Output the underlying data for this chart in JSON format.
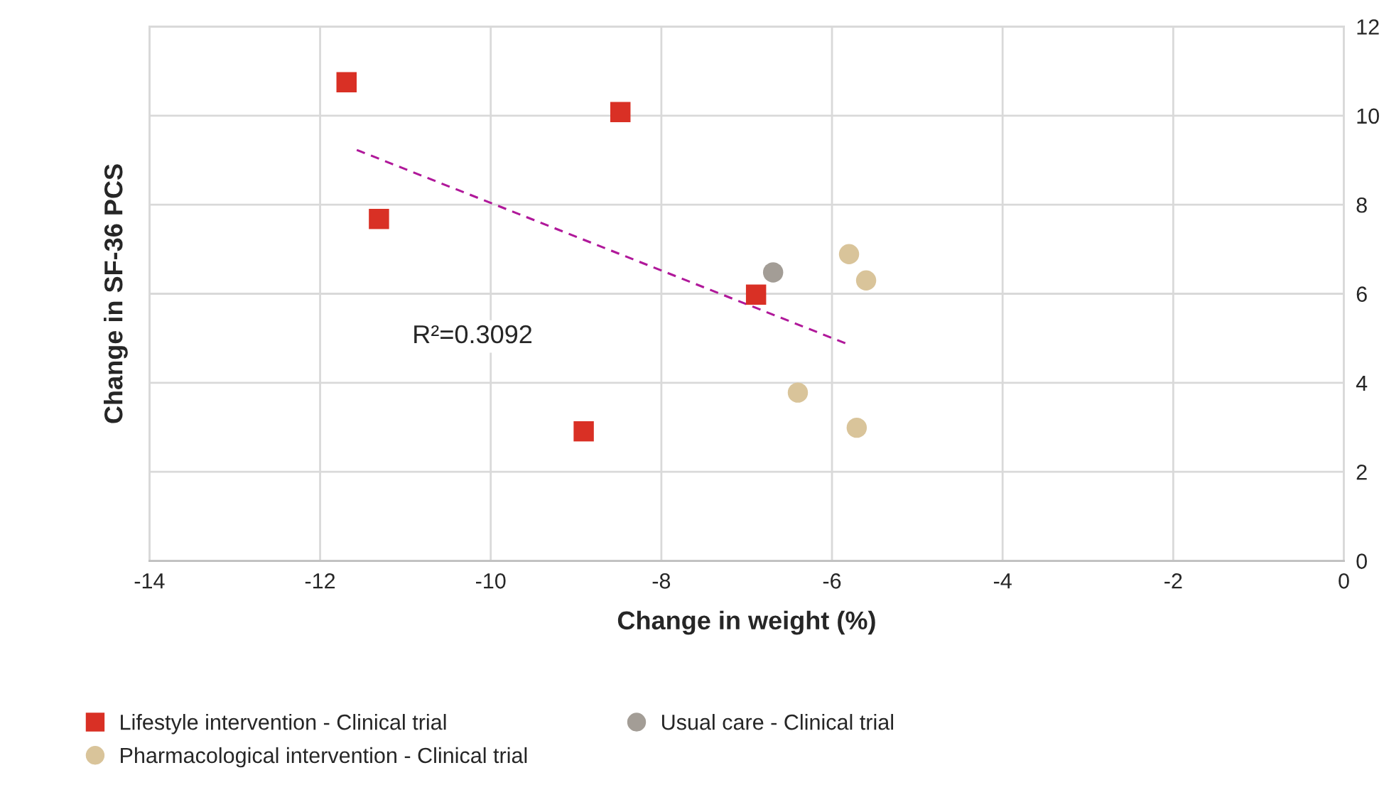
{
  "chart_data": {
    "type": "scatter",
    "xlabel": "Change in weight (%)",
    "ylabel": "Change in SF-36 PCS",
    "xlim": [
      -14,
      0
    ],
    "xticks": [
      -14,
      -12,
      -10,
      -8,
      -6,
      -4,
      -2,
      0
    ],
    "ylim": [
      0,
      12
    ],
    "yticks": [
      0,
      2,
      4,
      6,
      8,
      10,
      12
    ],
    "grid": true,
    "legend": "bottom",
    "annotations": [
      "R²=0.3092"
    ],
    "series": [
      {
        "name": "Lifestyle intervention - Clinical trial",
        "color": "#d93025",
        "marker": "square",
        "x": [
          -11.69,
          -8.48,
          -11.31,
          -6.89,
          -8.91
        ],
        "values": [
          10.75,
          10.08,
          7.68,
          5.98,
          2.91
        ]
      },
      {
        "name": "Pharmacological intervention - Clinical trial",
        "color": "#d9c49a",
        "marker": "circle",
        "x": [
          -5.8,
          -5.6,
          -6.4,
          -5.71
        ],
        "values": [
          6.89,
          6.3,
          3.78,
          2.99
        ]
      },
      {
        "name": "Usual care - Clinical trial",
        "color": "#a39d96",
        "marker": "circle",
        "x": [
          -6.69
        ],
        "values": [
          6.48
        ]
      },
      {
        "type": "line",
        "color": "#b0189a",
        "line_style": "dashed",
        "x": [
          -11.57,
          -5.82
        ],
        "values": [
          9.23,
          4.87
        ]
      }
    ]
  }
}
